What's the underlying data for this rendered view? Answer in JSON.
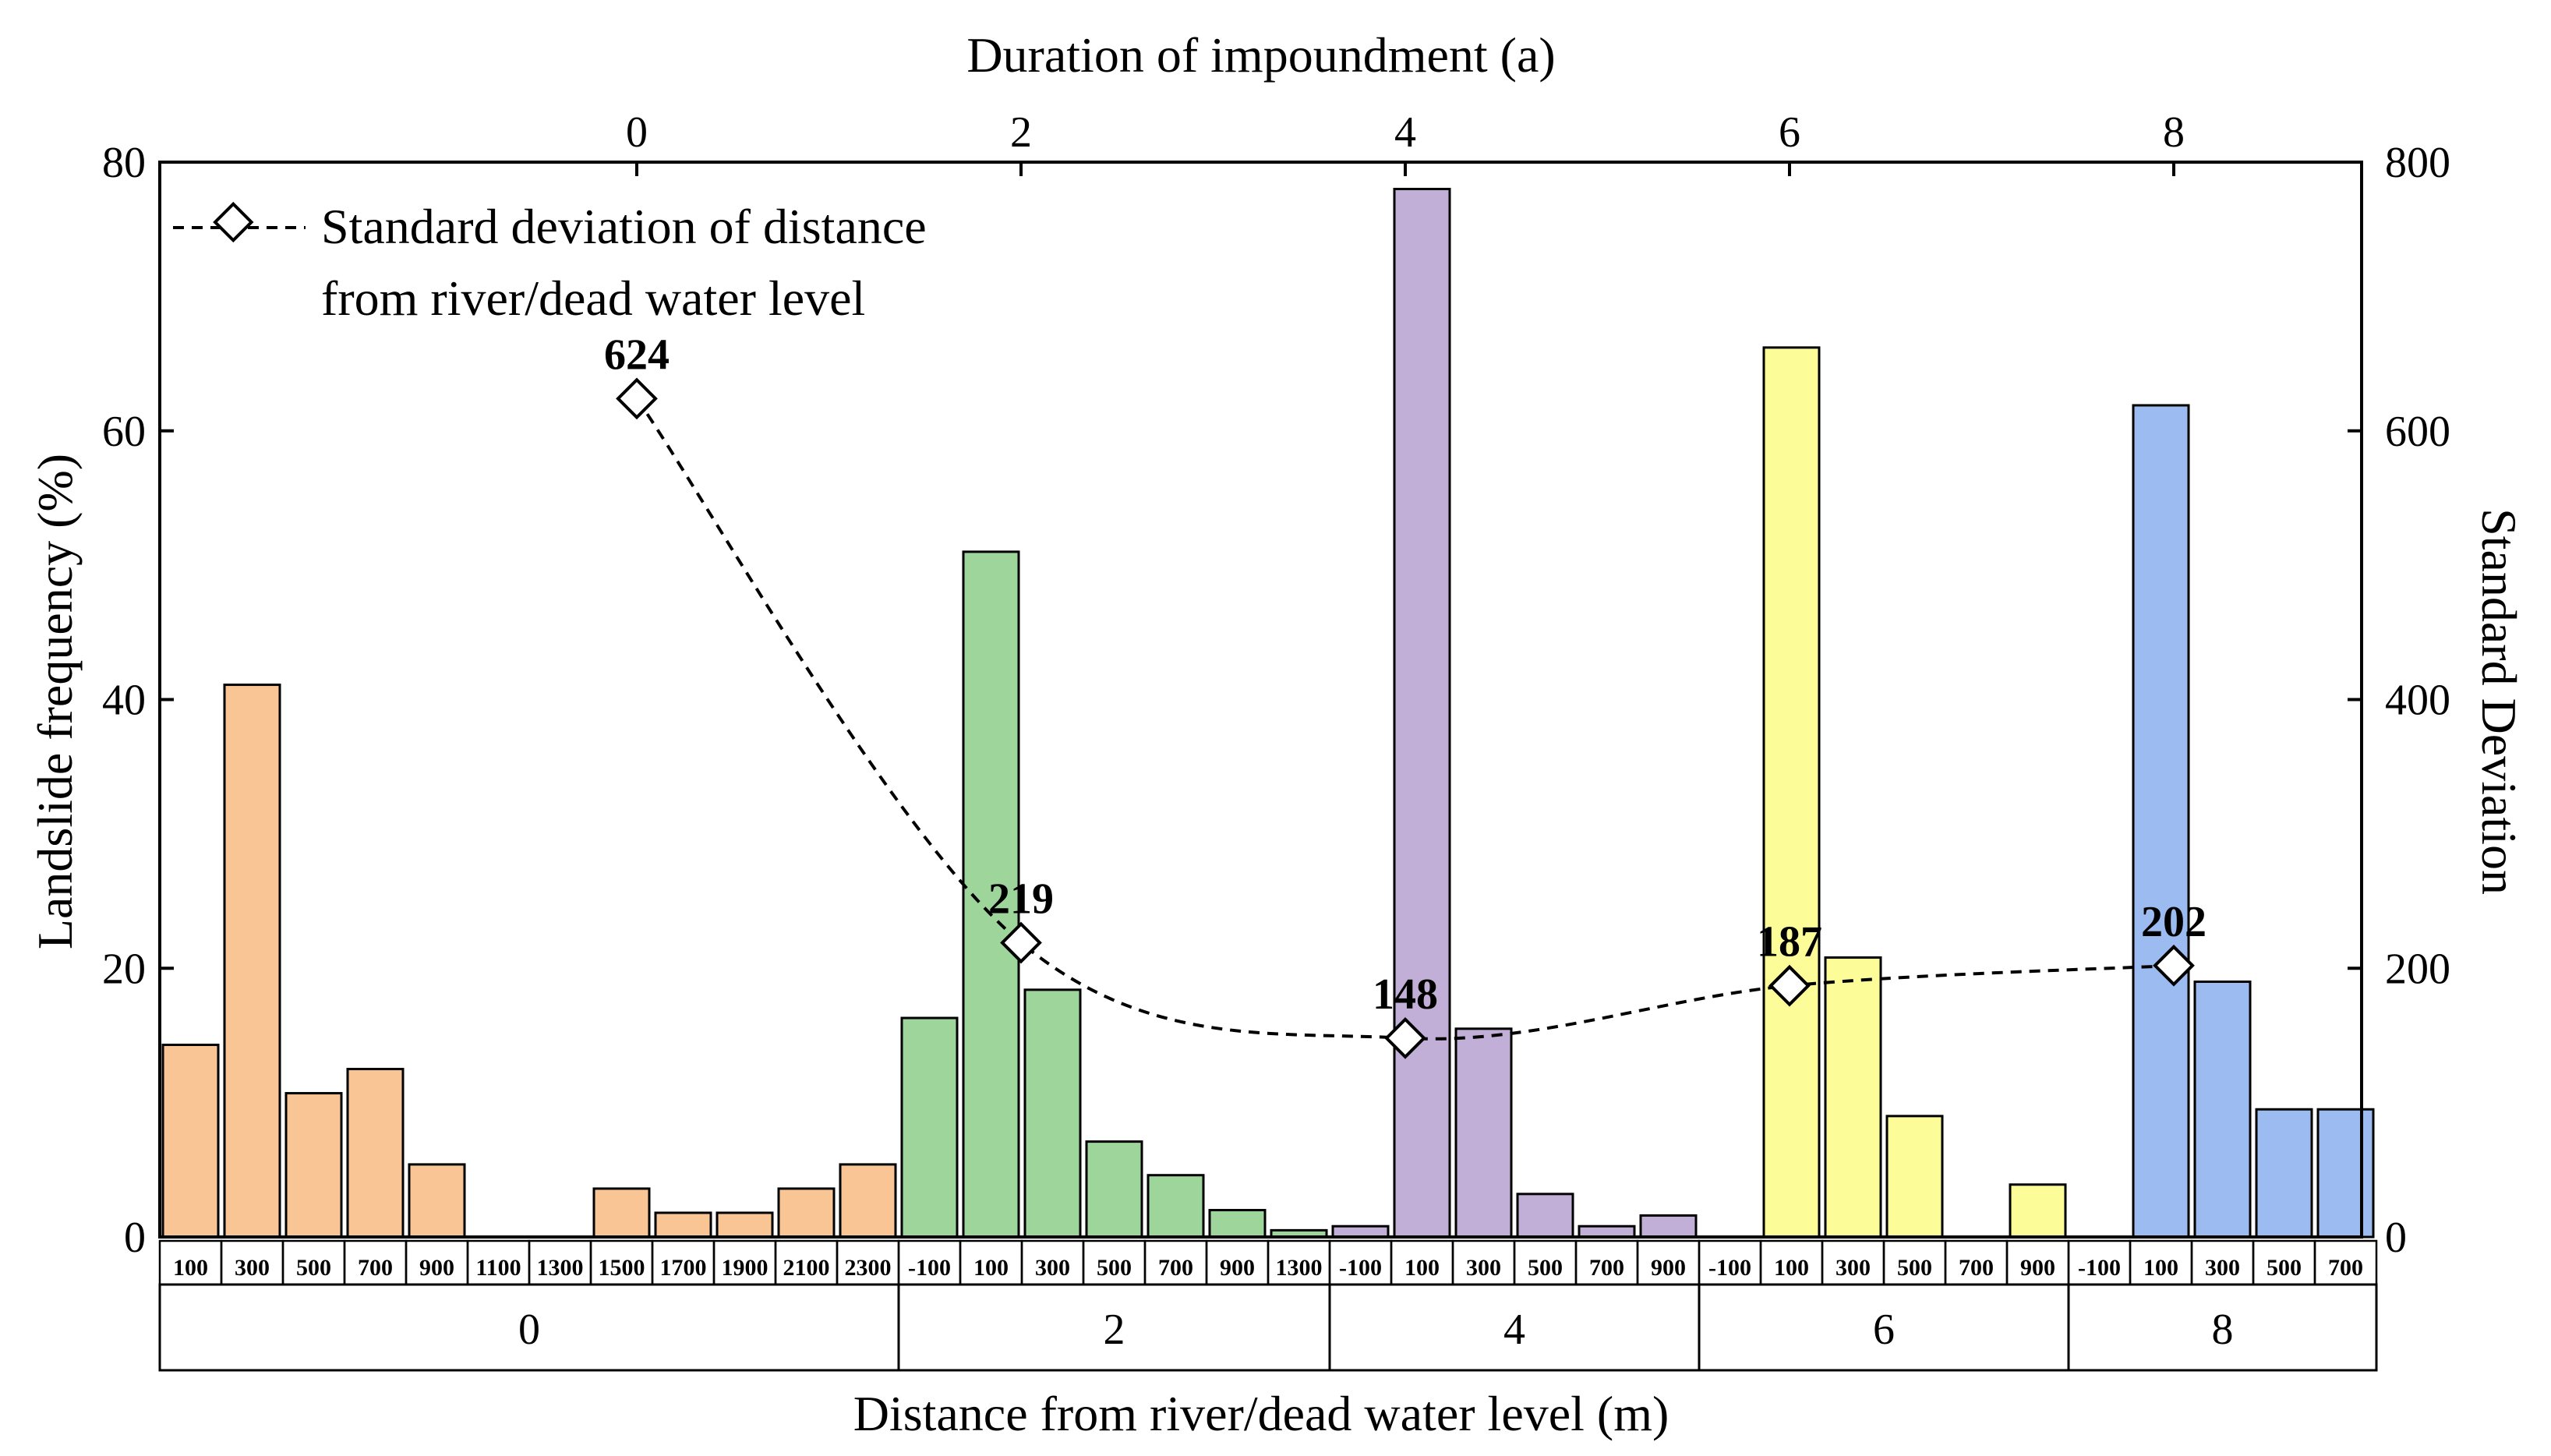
{
  "chart_data": {
    "type": "bar",
    "x_title": "Distance from river/dead water level (m)",
    "y_title": "Landslide frequency (%)",
    "y2_title": "Standard Deviation",
    "top_title": "Duration of impoundment (a)",
    "ylim": [
      0,
      80
    ],
    "y_ticks": [
      "0",
      "20",
      "40",
      "60",
      "80"
    ],
    "y2lim": [
      0,
      800
    ],
    "y2_ticks": [
      "0",
      "200",
      "400",
      "600",
      "800"
    ],
    "top_ticks": [
      "0",
      "2",
      "4",
      "6",
      "8"
    ],
    "groups": [
      {
        "name": "0",
        "color": "#F9C594",
        "categories": [
          "100",
          "300",
          "500",
          "700",
          "900",
          "1100",
          "1300",
          "1500",
          "1700",
          "1900",
          "2100",
          "2300"
        ],
        "values": [
          14.3,
          41.1,
          10.7,
          12.5,
          5.4,
          0,
          0,
          3.6,
          1.8,
          1.8,
          3.6,
          5.4
        ]
      },
      {
        "name": "2",
        "color": "#9ED59A",
        "categories": [
          "-100",
          "100",
          "300",
          "500",
          "700",
          "900",
          "1300"
        ],
        "values": [
          16.3,
          51.0,
          18.4,
          7.1,
          4.6,
          2.0,
          0.5
        ]
      },
      {
        "name": "4",
        "color": "#C2AFD7",
        "categories": [
          "-100",
          "100",
          "300",
          "500",
          "700",
          "900"
        ],
        "values": [
          0.8,
          78.0,
          15.5,
          3.2,
          0.8,
          1.6
        ]
      },
      {
        "name": "6",
        "color": "#FCFC99",
        "categories": [
          "-100",
          "100",
          "300",
          "500",
          "700",
          "900"
        ],
        "values": [
          0,
          66.2,
          20.8,
          9.0,
          0,
          3.9
        ]
      },
      {
        "name": "8",
        "color": "#9CBBF1",
        "categories": [
          "-100",
          "100",
          "300",
          "500",
          "700"
        ],
        "values": [
          0,
          61.9,
          19.0,
          9.5,
          9.5
        ]
      }
    ],
    "std_series": {
      "name": "Standard deviation of distance from river/dead water level",
      "legend_line1": "Standard deviation of distance",
      "legend_line2": "from river/dead water level",
      "x": [
        0,
        2,
        4,
        6,
        8
      ],
      "values": [
        624,
        219,
        148,
        187,
        202
      ],
      "labels": [
        "624",
        "219",
        "148",
        "187",
        "202"
      ]
    }
  }
}
